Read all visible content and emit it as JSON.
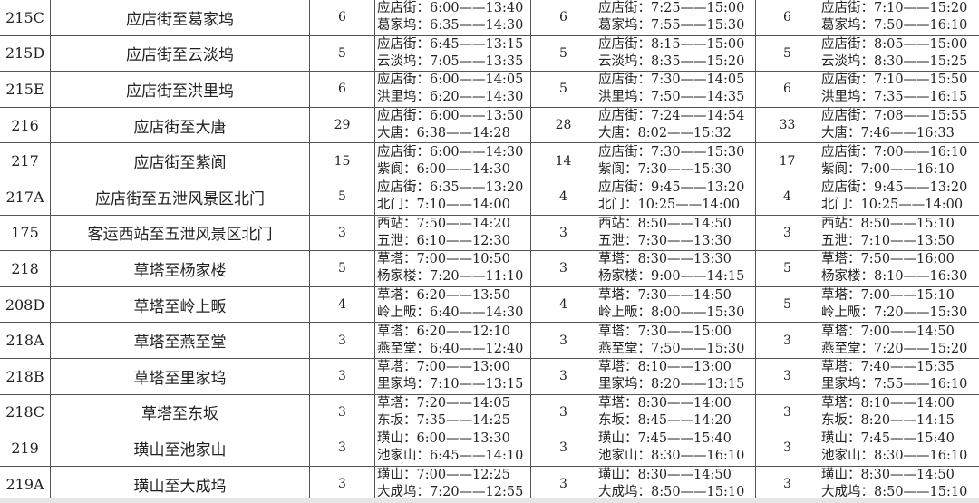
{
  "rows": [
    {
      "id": "215C",
      "name": "应店街至葛家坞",
      "c1": "6",
      "t1": [
        "应店街：6:00——13:40",
        "葛家坞：6:35——14:30"
      ],
      "c2": "6",
      "t2": [
        "应店街：7:25——15:00",
        "葛家坞：7:55——15:30"
      ],
      "c3": "6",
      "t3": [
        "应店街：7:10——15:20",
        "葛家坞：7:50——16:10"
      ]
    },
    {
      "id": "215D",
      "name": "应店街至云淡坞",
      "c1": "5",
      "t1": [
        "应店街：6:45——13:15",
        "云淡坞：7:05——13:35"
      ],
      "c2": "5",
      "t2": [
        "应店街：8:15——15:00",
        "云淡坞：8:35——15:20"
      ],
      "c3": "5",
      "t3": [
        "应店街：8:05——15:00",
        "云淡坞：8:30——15:25"
      ]
    },
    {
      "id": "215E",
      "name": "应店街至洪里坞",
      "c1": "6",
      "t1": [
        "应店街：6:00——14:05",
        "洪里坞：6:20——14:30"
      ],
      "c2": "5",
      "t2": [
        "应店街：7:30——14:05",
        "洪里坞：7:50——14:35"
      ],
      "c3": "6",
      "t3": [
        "应店街：7:10——15:50",
        "洪里坞：7:35——16:15"
      ]
    },
    {
      "id": "216",
      "name": "应店街至大唐",
      "c1": "29",
      "t1": [
        "应店街：6:00——13:50",
        "大唐：6:38——14:28"
      ],
      "c2": "28",
      "t2": [
        "应店街：7:24——14:54",
        "大唐：8:02——15:32"
      ],
      "c3": "33",
      "t3": [
        "应店街：7:08——15:55",
        "大唐：7:46——16:33"
      ]
    },
    {
      "id": "217",
      "name": "应店街至紫阆",
      "c1": "15",
      "t1": [
        "应店街：6:00——14:30",
        "紫阆：6:00——14:30"
      ],
      "c2": "14",
      "t2": [
        "应店街：7:30——15:30",
        "紫阆：7:30——15:30"
      ],
      "c3": "17",
      "t3": [
        "应店街：7:00——16:10",
        "紫阆：7:00——16:10"
      ]
    },
    {
      "id": "217A",
      "name": "应店街至五泄风景区北门",
      "c1": "5",
      "t1": [
        "应店街：6:35——13:20",
        "北门：7:10——14:00"
      ],
      "c2": "4",
      "t2": [
        "应店街：9:45——13:20",
        "北门：10:25——14:00"
      ],
      "c3": "4",
      "t3": [
        "应店街：9:45——13:20",
        "北门：10:25——14:00"
      ]
    },
    {
      "id": "175",
      "name": "客运西站至五泄风景区北门",
      "c1": "3",
      "t1": [
        "西站：7:50——14:20",
        "五泄：6:10——12:30"
      ],
      "c2": "3",
      "t2": [
        "西站：8:50——14:50",
        "五泄：7:30——13:30"
      ],
      "c3": "3",
      "t3": [
        "西站：8:50——15:10",
        "五泄：7:10——13:50"
      ]
    },
    {
      "id": "218",
      "name": "草塔至杨家楼",
      "c1": "5",
      "t1": [
        "草塔：7:00——10:50",
        "杨家楼：7:20——11:10"
      ],
      "c2": "3",
      "t2": [
        "草塔：8:30——13:30",
        "杨家楼：9:00——14:15"
      ],
      "c3": "5",
      "t3": [
        "草塔：7:50——16:00",
        "杨家楼：8:10——16:30"
      ]
    },
    {
      "id": "208D",
      "name": "草塔至岭上畈",
      "c1": "4",
      "t1": [
        "草塔：6:20——13:50",
        "岭上畈：6:40——14:30"
      ],
      "c2": "4",
      "t2": [
        "草塔：7:30——14:50",
        "岭上畈：8:00——15:30"
      ],
      "c3": "5",
      "t3": [
        "草塔：7:00——15:10",
        "岭上畈：7:20——15:30"
      ]
    },
    {
      "id": "218A",
      "name": "草塔至燕至堂",
      "c1": "3",
      "t1": [
        "草塔：6:20——12:10",
        "燕至堂：6:40——12:40"
      ],
      "c2": "3",
      "t2": [
        "草塔：7:30——15:00",
        "燕至堂：7:50——15:30"
      ],
      "c3": "3",
      "t3": [
        "草塔：7:00——14:50",
        "燕至堂：7:20——15:20"
      ]
    },
    {
      "id": "218B",
      "name": "草塔至里家坞",
      "c1": "3",
      "t1": [
        "草塔：7:00——13:00",
        "里家坞：7:10——13:15"
      ],
      "c2": "3",
      "t2": [
        "草塔：8:10——13:00",
        "里家坞：8:20——13:15"
      ],
      "c3": "3",
      "t3": [
        "草塔：7:40——15:35",
        "里家坞：7:55——16:10"
      ]
    },
    {
      "id": "218C",
      "name": "草塔至东坂",
      "c1": "3",
      "t1": [
        "草塔：7:20——14:05",
        "东坂：7:35——14:25"
      ],
      "c2": "3",
      "t2": [
        "草塔：8:30——14:00",
        "东坂：8:45——14:20"
      ],
      "c3": "3",
      "t3": [
        "草塔：8:10——14:00",
        "东坂：8:20——14:15"
      ]
    },
    {
      "id": "219",
      "name": "璜山至池家山",
      "c1": "3",
      "t1": [
        "璜山：6:00——13:30",
        "池家山：6:45——14:10"
      ],
      "c2": "3",
      "t2": [
        "璜山：7:45——15:40",
        "池家山：8:30——16:10"
      ],
      "c3": "3",
      "t3": [
        "璜山：7:45——15:40",
        "池家山：8:30——16:10"
      ]
    },
    {
      "id": "219A",
      "name": "璜山至大成坞",
      "c1": "3",
      "t1": [
        "璜山：7:00——12:25",
        "大成坞：7:20——12:55"
      ],
      "c2": "3",
      "t2": [
        "璜山：8:30——14:50",
        "大成坞：8:50——15:10"
      ],
      "c3": "3",
      "t3": [
        "璜山：8:30——14:50",
        "大成坞：8:50——15:10"
      ]
    }
  ]
}
